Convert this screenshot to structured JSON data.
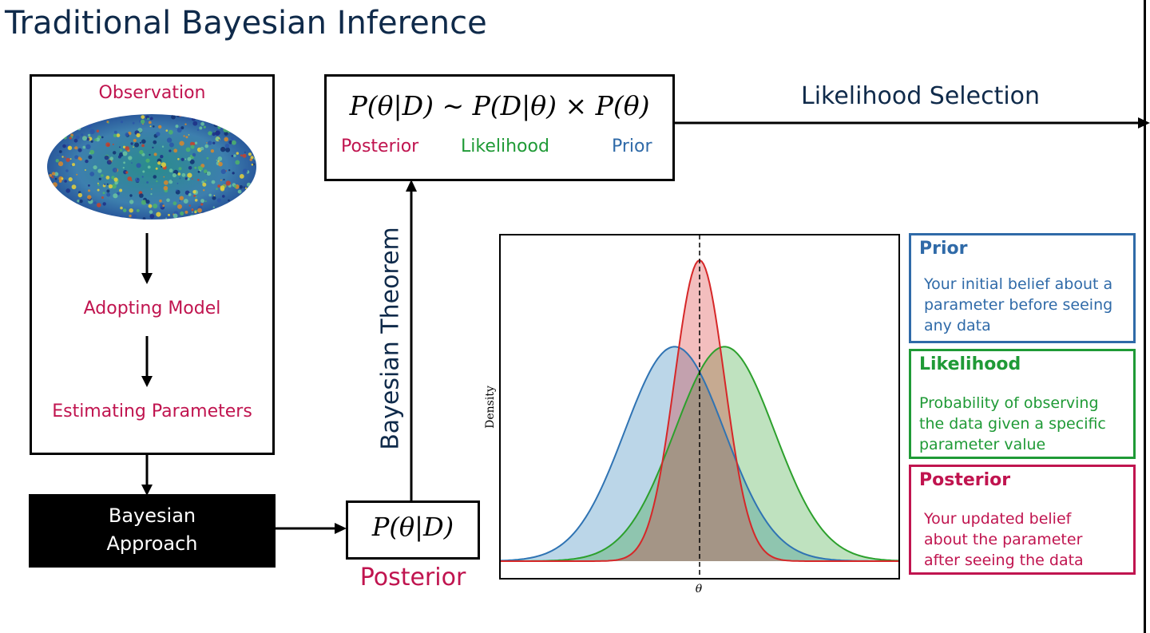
{
  "title": "Traditional Bayesian Inference",
  "left_box": {
    "observation": "Observation",
    "model": "Adopting Model",
    "params": "Estimating Parameters",
    "sky_map_icon": "cmb-sky-map-icon"
  },
  "bayes_box": {
    "line1": "Bayesian",
    "line2": "Approach"
  },
  "posterior_box": {
    "formula": "P(θ|D)",
    "label": "Posterior"
  },
  "theorem_label": "Bayesian Theorem",
  "formula_box": {
    "formula": "P(θ|D) ∼ P(D|θ) × P(θ)",
    "posterior": "Posterior",
    "likelihood": "Likelihood",
    "prior": "Prior"
  },
  "selection_label": "Likelihood Selection",
  "plot": {
    "xlabel": "θ",
    "ylabel": "Density"
  },
  "legend": {
    "prior": {
      "title": "Prior",
      "desc": [
        "Your initial belief about a",
        "parameter before seeing",
        "any data"
      ]
    },
    "likelihood": {
      "title": "Likelihood",
      "desc": [
        "Probability of observing",
        "the data given a specific",
        "parameter value"
      ]
    },
    "posterior": {
      "title": "Posterior",
      "desc": [
        "Your updated belief",
        "about the parameter",
        "after seeing the data"
      ]
    }
  },
  "colors": {
    "prior": "#2f6aa8",
    "likelihood": "#1f9a36",
    "posterior": "#c0144f"
  },
  "chart_data": {
    "type": "area",
    "xlabel": "θ",
    "ylabel": "Density",
    "series": [
      {
        "name": "Prior",
        "shape": "gaussian",
        "mean": -0.5,
        "sd": 1.0,
        "peak": 0.67
      },
      {
        "name": "Likelihood",
        "shape": "gaussian",
        "mean": 0.5,
        "sd": 1.0,
        "peak": 0.67
      },
      {
        "name": "Posterior",
        "shape": "gaussian",
        "mean": 0.0,
        "sd": 0.5,
        "peak": 0.94
      }
    ],
    "vline": 0.0,
    "xlim": [
      -4,
      4
    ],
    "ylim": [
      0,
      1.0
    ],
    "grid": false
  }
}
